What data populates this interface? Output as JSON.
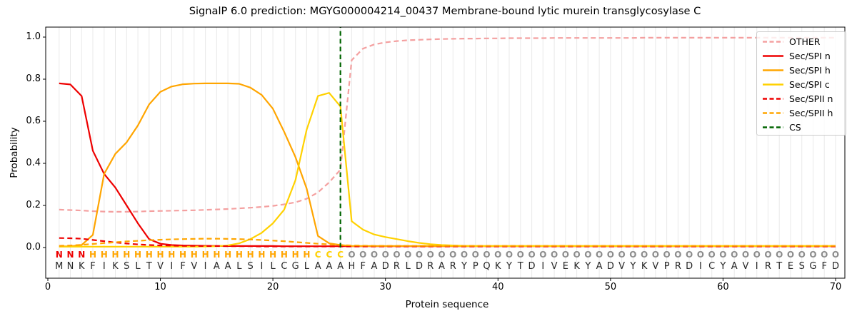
{
  "title": "SignalP 6.0 prediction: MGYG000004214_00437 Membrane-bound lytic murein transglycosylase C",
  "axes": {
    "xlabel": "Protein sequence",
    "ylabel": "Probability",
    "x_ticks": [
      0,
      10,
      20,
      30,
      40,
      50,
      60,
      70
    ],
    "y_ticks": [
      "0.0",
      "0.2",
      "0.4",
      "0.6",
      "0.8",
      "1.0"
    ],
    "grid": "vertical line per residue"
  },
  "legend": {
    "position": "upper right",
    "entries": [
      {
        "label": "OTHER",
        "color": "#f4a0a0",
        "dash": true
      },
      {
        "label": "Sec/SPI n",
        "color": "#ee0000",
        "dash": false
      },
      {
        "label": "Sec/SPI h",
        "color": "#ffa500",
        "dash": false
      },
      {
        "label": "Sec/SPI c",
        "color": "#ffd100",
        "dash": false
      },
      {
        "label": "Sec/SPII n",
        "color": "#ee0000",
        "dash": true
      },
      {
        "label": "Sec/SPII h",
        "color": "#ffa500",
        "dash": true
      },
      {
        "label": "CS",
        "color": "#006400",
        "dash": true
      }
    ]
  },
  "sequence": {
    "residues": "MNKFIKSLTVIFVIAALSILCGLAAAHFADRLDRARYPQKYTDIVEKYADVYKVPRDICYAVIRTESGFD",
    "region_labels": "NNNHHHHHHHHHHHHHHHHHHHHCCCOOOOOOOOOOOOOOOOOOOOOOOOOOOOOOOOOOOOOOOOOOOO",
    "label_colors": {
      "N": "#ee0000",
      "H": "#ffa500",
      "C": "#ffd100",
      "O": "#8c8c8c"
    },
    "residue_color": "#262626"
  },
  "chart_data": {
    "type": "line",
    "x_unit": "residue_position",
    "x_range": [
      1,
      70
    ],
    "ylim": [
      0,
      1.05
    ],
    "cs_position": 26,
    "cs_color": "#006400",
    "series": [
      {
        "name": "OTHER",
        "color": "#f4a0a0",
        "dash": true,
        "values": [
          0.18,
          0.178,
          0.176,
          0.173,
          0.171,
          0.17,
          0.17,
          0.171,
          0.173,
          0.174,
          0.175,
          0.176,
          0.177,
          0.179,
          0.181,
          0.183,
          0.186,
          0.189,
          0.193,
          0.198,
          0.205,
          0.215,
          0.232,
          0.262,
          0.31,
          0.37,
          0.89,
          0.945,
          0.965,
          0.975,
          0.981,
          0.985,
          0.987,
          0.989,
          0.991,
          0.992,
          0.993,
          0.993,
          0.994,
          0.994,
          0.995,
          0.995,
          0.995,
          0.995,
          0.996,
          0.996,
          0.996,
          0.996,
          0.996,
          0.996,
          0.996,
          0.996,
          0.997,
          0.997,
          0.997,
          0.997,
          0.997,
          0.997,
          0.997,
          0.997,
          0.997,
          0.997,
          0.997,
          0.997,
          0.997,
          0.997,
          0.997,
          0.997,
          0.997,
          0.997
        ]
      },
      {
        "name": "Sec/SPI n",
        "color": "#ee0000",
        "dash": false,
        "values": [
          0.78,
          0.775,
          0.72,
          0.46,
          0.35,
          0.285,
          0.2,
          0.115,
          0.04,
          0.018,
          0.012,
          0.01,
          0.009,
          0.008,
          0.007,
          0.007,
          0.007,
          0.007,
          0.007,
          0.007,
          0.006,
          0.006,
          0.006,
          0.006,
          0.006,
          0.006,
          0.006,
          0.006,
          0.006,
          0.006,
          0.006,
          0.006,
          0.006,
          0.006,
          0.006,
          0.006,
          0.006,
          0.006,
          0.006,
          0.006,
          0.006,
          0.006,
          0.006,
          0.006,
          0.006,
          0.006,
          0.006,
          0.006,
          0.006,
          0.006,
          0.006,
          0.006,
          0.006,
          0.006,
          0.006,
          0.006,
          0.006,
          0.006,
          0.006,
          0.006,
          0.006,
          0.006,
          0.006,
          0.006,
          0.006,
          0.006,
          0.006,
          0.006,
          0.006,
          0.006
        ]
      },
      {
        "name": "Sec/SPI h",
        "color": "#ffa500",
        "dash": false,
        "values": [
          0.005,
          0.006,
          0.012,
          0.06,
          0.35,
          0.445,
          0.5,
          0.58,
          0.68,
          0.74,
          0.765,
          0.776,
          0.779,
          0.78,
          0.78,
          0.78,
          0.778,
          0.76,
          0.725,
          0.66,
          0.55,
          0.43,
          0.28,
          0.055,
          0.02,
          0.012,
          0.007,
          0.007,
          0.007,
          0.007,
          0.007,
          0.007,
          0.007,
          0.007,
          0.007,
          0.007,
          0.007,
          0.007,
          0.007,
          0.007,
          0.007,
          0.007,
          0.007,
          0.007,
          0.007,
          0.007,
          0.007,
          0.007,
          0.007,
          0.007,
          0.007,
          0.007,
          0.007,
          0.007,
          0.007,
          0.007,
          0.007,
          0.007,
          0.007,
          0.007,
          0.007,
          0.007,
          0.007,
          0.007,
          0.007,
          0.007,
          0.007,
          0.007,
          0.007,
          0.007
        ]
      },
      {
        "name": "Sec/SPI c",
        "color": "#ffd100",
        "dash": false,
        "values": [
          0.004,
          0.004,
          0.004,
          0.004,
          0.004,
          0.004,
          0.004,
          0.004,
          0.004,
          0.004,
          0.004,
          0.004,
          0.004,
          0.005,
          0.006,
          0.01,
          0.02,
          0.04,
          0.07,
          0.115,
          0.18,
          0.32,
          0.56,
          0.72,
          0.735,
          0.67,
          0.125,
          0.085,
          0.062,
          0.05,
          0.04,
          0.03,
          0.022,
          0.016,
          0.012,
          0.01,
          0.008,
          0.007,
          0.007,
          0.007,
          0.007,
          0.007,
          0.007,
          0.007,
          0.007,
          0.007,
          0.007,
          0.007,
          0.007,
          0.007,
          0.007,
          0.007,
          0.007,
          0.007,
          0.007,
          0.007,
          0.007,
          0.007,
          0.007,
          0.007,
          0.007,
          0.007,
          0.007,
          0.007,
          0.007,
          0.007,
          0.007,
          0.007,
          0.007,
          0.007
        ]
      },
      {
        "name": "Sec/SPII n",
        "color": "#ee0000",
        "dash": true,
        "values": [
          0.045,
          0.044,
          0.042,
          0.036,
          0.03,
          0.024,
          0.019,
          0.015,
          0.012,
          0.01,
          0.009,
          0.008,
          0.008,
          0.007,
          0.007,
          0.006,
          0.006,
          0.006,
          0.005,
          0.005,
          0.005,
          0.005,
          0.005,
          0.005,
          0.005,
          0.005,
          0.005,
          0.005,
          0.005,
          0.005,
          0.005,
          0.005,
          0.005,
          0.005,
          0.005,
          0.005,
          0.005,
          0.005,
          0.005,
          0.005,
          0.005,
          0.005,
          0.005,
          0.005,
          0.005,
          0.005,
          0.005,
          0.005,
          0.005,
          0.005,
          0.005,
          0.005,
          0.005,
          0.005,
          0.005,
          0.005,
          0.005,
          0.005,
          0.005,
          0.005,
          0.005,
          0.005,
          0.005,
          0.005,
          0.005,
          0.005,
          0.005,
          0.005,
          0.005,
          0.005
        ]
      },
      {
        "name": "Sec/SPII h",
        "color": "#ffa500",
        "dash": true,
        "values": [
          0.008,
          0.01,
          0.013,
          0.017,
          0.021,
          0.025,
          0.029,
          0.032,
          0.035,
          0.037,
          0.039,
          0.04,
          0.041,
          0.042,
          0.042,
          0.041,
          0.04,
          0.038,
          0.036,
          0.033,
          0.03,
          0.026,
          0.022,
          0.018,
          0.015,
          0.012,
          0.01,
          0.009,
          0.008,
          0.008,
          0.008,
          0.008,
          0.008,
          0.008,
          0.008,
          0.008,
          0.008,
          0.008,
          0.008,
          0.008,
          0.008,
          0.008,
          0.008,
          0.008,
          0.008,
          0.008,
          0.008,
          0.008,
          0.008,
          0.008,
          0.008,
          0.008,
          0.008,
          0.008,
          0.008,
          0.008,
          0.008,
          0.008,
          0.008,
          0.008,
          0.008,
          0.008,
          0.008,
          0.008,
          0.008,
          0.008,
          0.008,
          0.008,
          0.008,
          0.008
        ]
      }
    ]
  }
}
